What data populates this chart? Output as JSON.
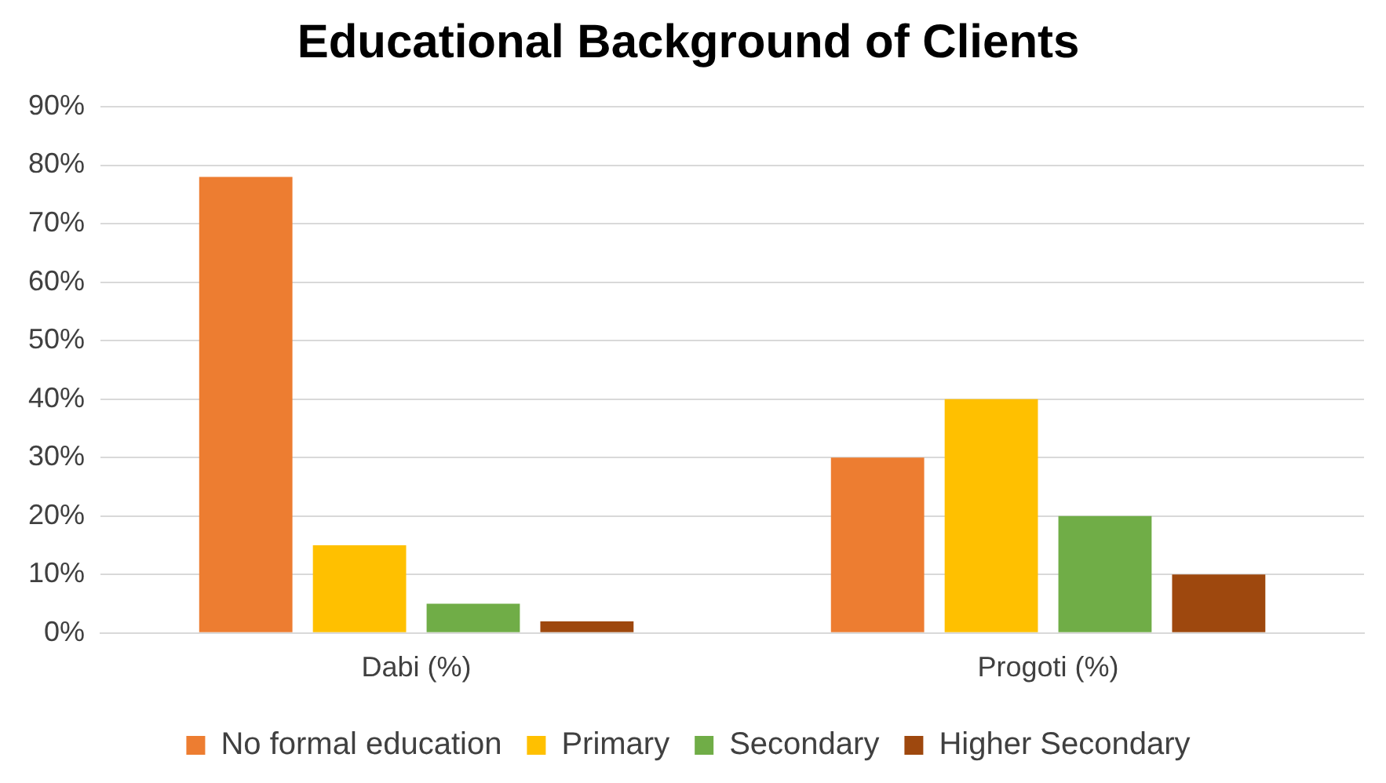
{
  "chart_data": {
    "type": "bar",
    "title": "Educational Background of Clients",
    "categories": [
      "Dabi (%)",
      "Progoti (%)"
    ],
    "series": [
      {
        "name": "No formal education",
        "color": "#ed7d31",
        "values": [
          78,
          30
        ]
      },
      {
        "name": "Primary",
        "color": "#ffc000",
        "values": [
          15,
          40
        ]
      },
      {
        "name": "Secondary",
        "color": "#70ad47",
        "values": [
          5,
          20
        ]
      },
      {
        "name": "Higher Secondary",
        "color": "#9e480e",
        "values": [
          2,
          10
        ]
      }
    ],
    "ylim": [
      0,
      90
    ],
    "yticks": [
      {
        "value": 0,
        "label": "0%"
      },
      {
        "value": 10,
        "label": "10%"
      },
      {
        "value": 20,
        "label": "20%"
      },
      {
        "value": 30,
        "label": "30%"
      },
      {
        "value": 40,
        "label": "40%"
      },
      {
        "value": 50,
        "label": "50%"
      },
      {
        "value": 60,
        "label": "60%"
      },
      {
        "value": 70,
        "label": "70%"
      },
      {
        "value": 80,
        "label": "80%"
      },
      {
        "value": 90,
        "label": "90%"
      }
    ],
    "grid": "y",
    "legend": "bottom"
  }
}
